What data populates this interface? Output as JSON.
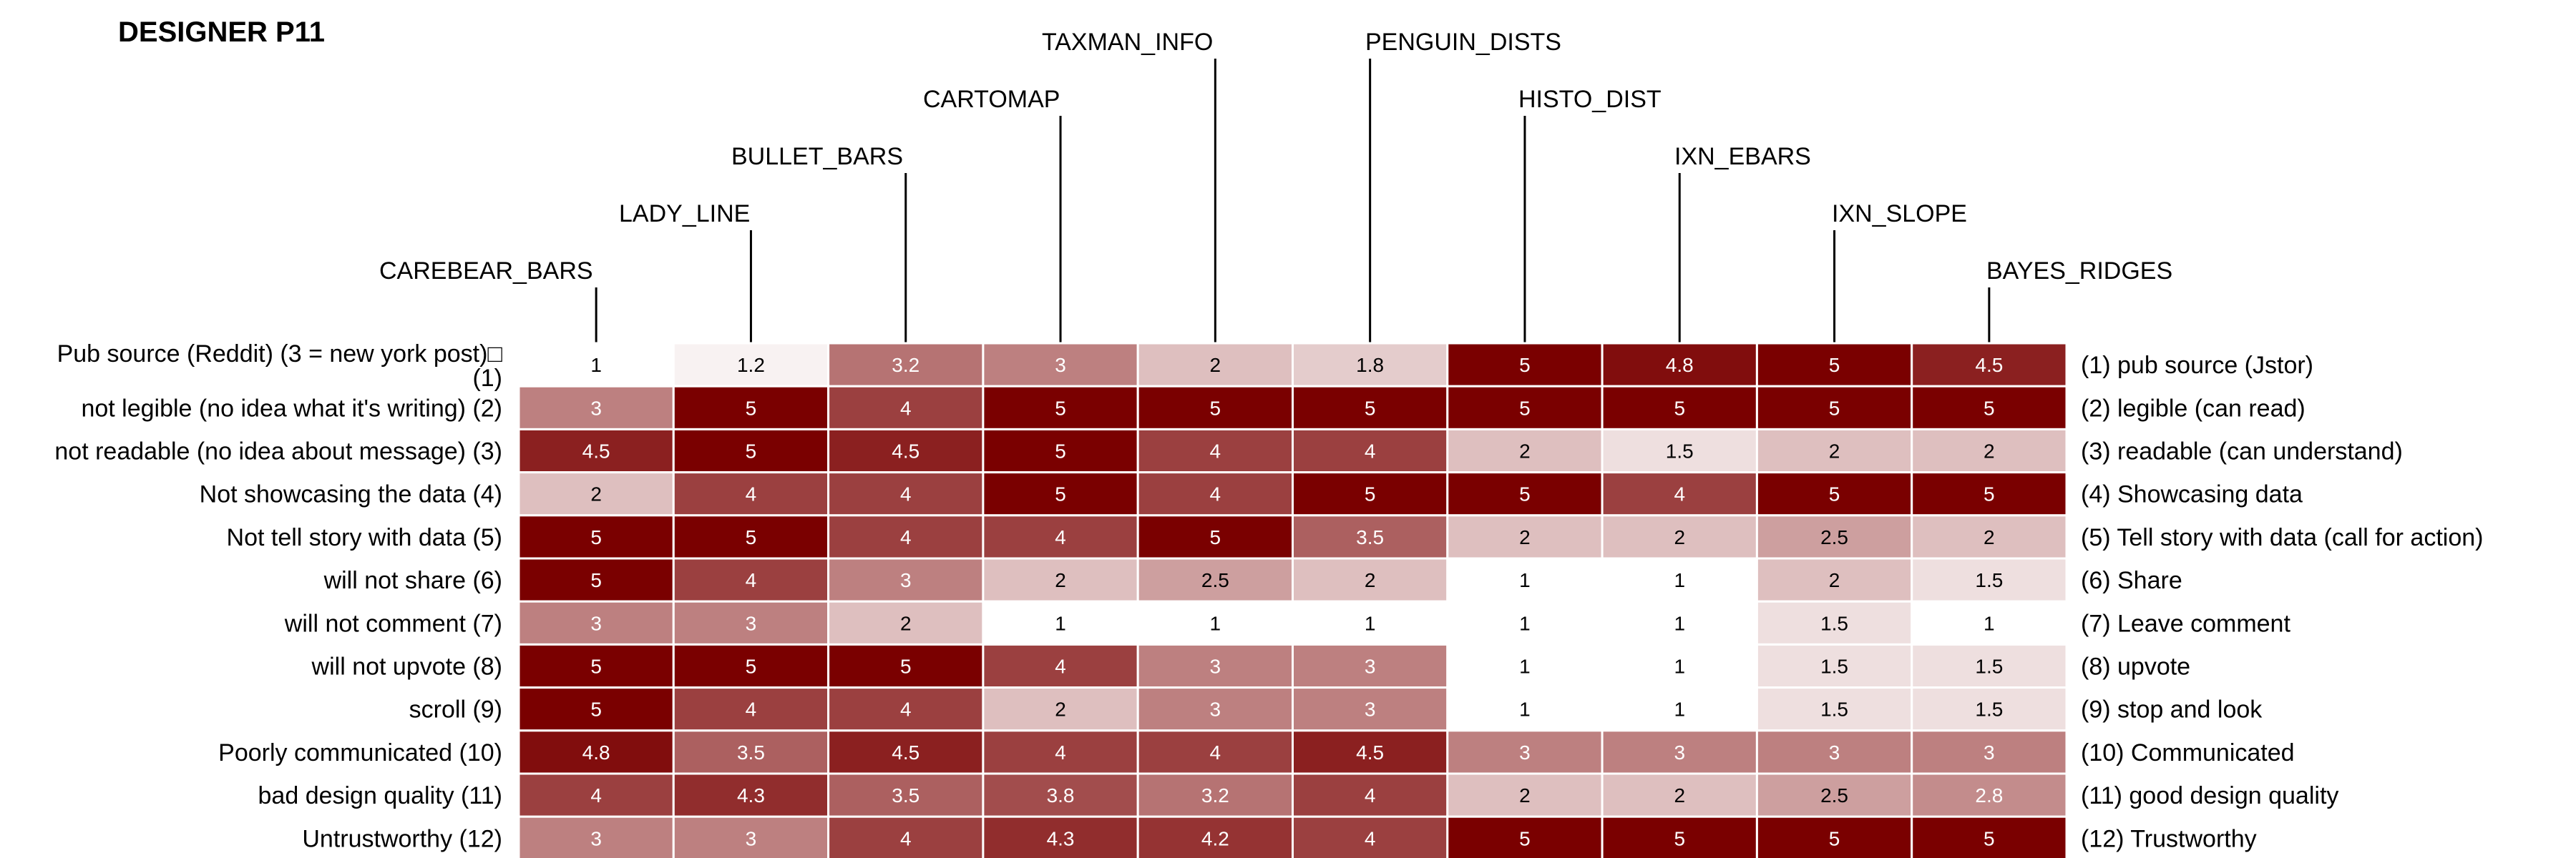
{
  "chart_data": {
    "type": "heatmap",
    "title": "DESIGNER P11",
    "columns": [
      "CAREBEAR_BARS",
      "LADY_LINE",
      "BULLET_BARS",
      "CARTOMAP",
      "TAXMAN_INFO",
      "PENGUIN_DISTS",
      "HISTO_DIST",
      "IXN_EBARS",
      "IXN_SLOPE",
      "BAYES_RIDGES"
    ],
    "rows_left": [
      [
        "Pub source (Reddit) (3 = new york post)□",
        "(1)"
      ],
      [
        "not legible (no idea what it's writing) (2)"
      ],
      [
        "not readable (no idea about message) (3)"
      ],
      [
        "Not showcasing the data (4)"
      ],
      [
        "Not tell story with data (5)"
      ],
      [
        "will not share (6)"
      ],
      [
        "will not comment (7)"
      ],
      [
        "will not upvote (8)"
      ],
      [
        "scroll (9)"
      ],
      [
        "Poorly communicated (10)"
      ],
      [
        "bad design quality (11)"
      ],
      [
        "Untrustworthy (12)"
      ]
    ],
    "rows_right": [
      "(1) pub source (Jstor)",
      "(2) legible (can read)",
      "(3) readable (can understand)",
      "(4) Showcasing data",
      "(5) Tell story with data (call for action)",
      "(6) Share",
      "(7) Leave comment",
      "(8) upvote",
      "(9) stop and look",
      "(10) Communicated",
      "(11) good design quality",
      "(12) Trustworthy"
    ],
    "values": [
      [
        1,
        1.2,
        3.2,
        3,
        2,
        1.8,
        5,
        4.8,
        5,
        4.5
      ],
      [
        3,
        5,
        4,
        5,
        5,
        5,
        5,
        5,
        5,
        5
      ],
      [
        4.5,
        5,
        4.5,
        5,
        4,
        4,
        2,
        1.5,
        2,
        2
      ],
      [
        2,
        4,
        4,
        5,
        4,
        5,
        5,
        4,
        5,
        5
      ],
      [
        5,
        5,
        4,
        4,
        5,
        3.5,
        2,
        2,
        2.5,
        2
      ],
      [
        5,
        4,
        3,
        2,
        2.5,
        2,
        1,
        1,
        2,
        1.5
      ],
      [
        3,
        3,
        2,
        1,
        1,
        1,
        1,
        1,
        1.5,
        1
      ],
      [
        5,
        5,
        5,
        4,
        3,
        3,
        1,
        1,
        1.5,
        1.5
      ],
      [
        5,
        4,
        4,
        2,
        3,
        3,
        1,
        1,
        1.5,
        1.5
      ],
      [
        4.8,
        3.5,
        4.5,
        4,
        4,
        4.5,
        3,
        3,
        3,
        3
      ],
      [
        4,
        4.3,
        3.5,
        3.8,
        3.2,
        4,
        2,
        2,
        2.5,
        2.8
      ],
      [
        3,
        3,
        4,
        4.3,
        4.2,
        4,
        5,
        5,
        5,
        5
      ]
    ],
    "scale": [
      1,
      5
    ],
    "color_low": "#ffffff",
    "color_high": "#7a0000",
    "grid": false,
    "legend": "none"
  }
}
